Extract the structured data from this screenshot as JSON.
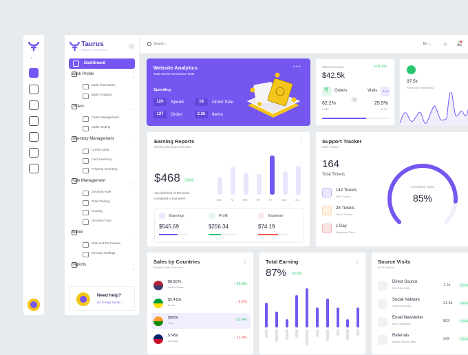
{
  "app": {
    "brand": "Taurus",
    "tagline": "SMART SYSTEM"
  },
  "topbar": {
    "search_placeholder": "Search...",
    "language": "En"
  },
  "sidebar": {
    "active": "Dashboard",
    "groups": [
      {
        "label": "Bank Profile",
        "items": [
          "Bank Information",
          "Bank Products"
        ]
      },
      {
        "label": "Orders",
        "items": [
          "Order Management",
          "Order Setting"
        ]
      },
      {
        "label": "Inventory Management",
        "items": [
          "Credit Cards",
          "Cars Inventory",
          "Property Inventory"
        ]
      },
      {
        "label": "Rule Management",
        "items": [
          "Decision Rule",
          "Risk Grading",
          "Scoring",
          "Decision Flow"
        ]
      },
      {
        "label": "Admin",
        "items": [
          "Role and Permission",
          "Security Settings"
        ]
      },
      {
        "label": "Reports",
        "items": []
      }
    ],
    "help": {
      "title": "Need help?",
      "link": "Go to Help Center →"
    }
  },
  "analytics": {
    "title": "Website Analytics",
    "subtitle": "Total 28.5% Conversion Rate",
    "section": "Spending",
    "stats": [
      {
        "value": "12h",
        "label": "Spend"
      },
      {
        "value": "18",
        "label": "Order Size"
      },
      {
        "value": "127",
        "label": "Order"
      },
      {
        "value": "2.3k",
        "label": "Items"
      }
    ]
  },
  "sales_overview": {
    "label": "Sales Overview",
    "change": "+18.2%",
    "value": "$42.5k",
    "orders_label": "Orders",
    "visits_label": "Visits",
    "vs": "VS",
    "orders_pct": "62.2%",
    "orders_count": "6,440",
    "visits_pct": "25.5%",
    "visits_count": "12,749",
    "progress": 0.66
  },
  "revenue": {
    "value": "97.5k",
    "label": "Revenue Generated",
    "color": "#28c76f"
  },
  "earning": {
    "title": "Earning Reports",
    "subtitle": "Weekly Earnings Overview",
    "value": "$468",
    "badge": "+4.2%",
    "note1": "You informed of this week",
    "note2": "compared to last week",
    "days": [
      "Mo",
      "Tu",
      "We",
      "Th",
      "Fr",
      "Sa",
      "Su"
    ],
    "bars": [
      40,
      62,
      50,
      46,
      88,
      52,
      64
    ],
    "highlight": 4,
    "metrics": [
      {
        "label": "Earnings",
        "value": "$545.69",
        "color": "#7556f0",
        "progress": 0.65
      },
      {
        "label": "Profit",
        "value": "$256.34",
        "color": "#28c76f",
        "progress": 0.43
      },
      {
        "label": "Expense",
        "value": "$74.19",
        "color": "#ea5455",
        "progress": 0.7
      }
    ]
  },
  "support": {
    "title": "Support Tracker",
    "subtitle": "Last 7 Days",
    "total": "164",
    "total_label": "Total Tickets",
    "items": [
      {
        "title": "142 Tickets",
        "sub": "New Tickets",
        "color": "#7556f0",
        "bg": "#ece8fd"
      },
      {
        "title": "28 Tickets",
        "sub": "Open Tickets",
        "color": "#ff9f43",
        "bg": "#fff0e1"
      },
      {
        "title": "1 Day",
        "sub": "Response Time",
        "color": "#ea5455",
        "bg": "#fce4e4"
      }
    ],
    "gauge_label": "Completed Tasks",
    "gauge_value": "85%",
    "gauge_pct": 85
  },
  "countries": {
    "title": "Sales by Countries",
    "subtitle": "Monthly Sales Overview",
    "rows": [
      {
        "value": "$8,567k",
        "country": "United States",
        "change": "25.8%",
        "up": true
      },
      {
        "value": "$2,415k",
        "country": "Brazil",
        "change": "6.2%",
        "up": false
      },
      {
        "value": "$865k",
        "country": "India",
        "change": "12.4%",
        "up": true
      },
      {
        "value": "$745k",
        "country": "Australia",
        "change": "11.9%",
        "up": false
      }
    ]
  },
  "total_earning": {
    "title": "Total Earning",
    "value": "87%",
    "change": "25.8%",
    "up": [
      55,
      36,
      18,
      72,
      88,
      44,
      65,
      44,
      18,
      44
    ],
    "down": [
      22,
      32,
      26,
      22,
      40,
      20,
      30,
      16,
      26,
      16
    ]
  },
  "source_visits": {
    "title": "Source Visits",
    "subtitle": "38.4k Visitors",
    "rows": [
      {
        "title": "Direct Source",
        "sub": "Direct link click",
        "value": "1.2k",
        "badge": "+4.2%"
      },
      {
        "title": "Social Network",
        "sub": "Social Channels",
        "value": "31.5k",
        "badge": "+8.2%"
      },
      {
        "title": "Email Newsletter",
        "sub": "Mail Campaigns",
        "value": "893",
        "badge": "+2.4%"
      },
      {
        "title": "Referrals",
        "sub": "Impact Radius Visits",
        "value": "342",
        "badge": "+9.1%"
      }
    ]
  }
}
